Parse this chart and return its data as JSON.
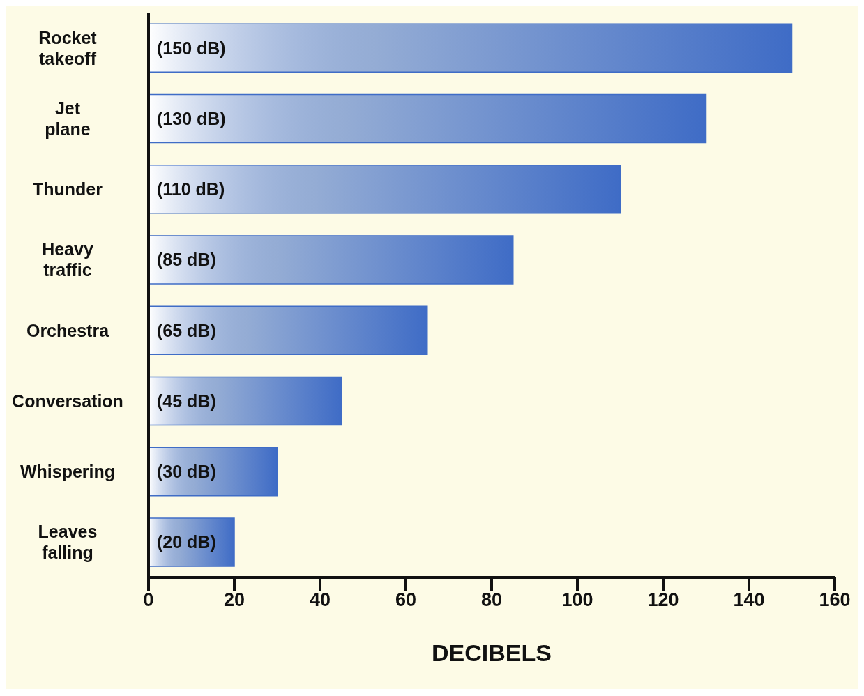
{
  "chart_data": {
    "type": "bar",
    "orientation": "horizontal",
    "xlabel": "DECIBELS",
    "categories": [
      "Rocket takeoff",
      "Jet plane",
      "Thunder",
      "Heavy traffic",
      "Orchestra",
      "Conversation",
      "Whispering",
      "Leaves falling"
    ],
    "values": [
      150,
      130,
      110,
      85,
      65,
      45,
      30,
      20
    ],
    "value_labels": [
      "(150 dB)",
      "(130 dB)",
      "(110 dB)",
      "(85 dB)",
      "(65 dB)",
      "(45 dB)",
      "(30 dB)",
      "(20 dB)"
    ],
    "color": "#3f6cc6",
    "xlim": [
      0,
      160
    ],
    "xticks": [
      0,
      20,
      40,
      60,
      80,
      100,
      120,
      140,
      160
    ]
  }
}
